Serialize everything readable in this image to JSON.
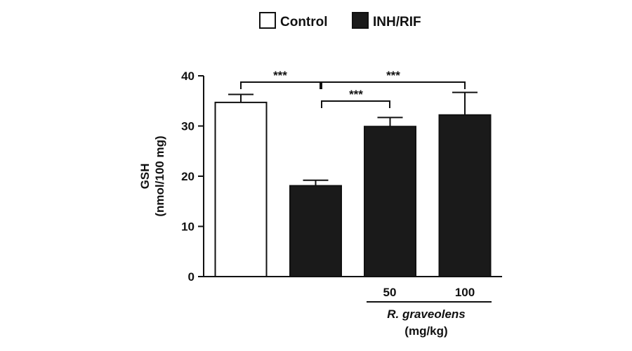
{
  "chart_data": {
    "type": "bar",
    "categories": [
      "Control",
      "INH/RIF",
      "R. graveolens 50",
      "R. graveolens 100"
    ],
    "values": [
      34.7,
      18.1,
      29.9,
      32.2
    ],
    "errors": [
      1.6,
      1.1,
      1.8,
      4.5
    ],
    "series": [
      {
        "name": "Control",
        "color": "#ffffff"
      },
      {
        "name": "INH/RIF",
        "color": "#1a1a1a"
      }
    ],
    "bar_series": [
      "Control",
      "INH/RIF",
      "INH/RIF",
      "INH/RIF"
    ],
    "ylabel_line1": "GSH",
    "ylabel_line2": "(nmol/100 mg)",
    "ylim": [
      0,
      40
    ],
    "yticks": [
      0,
      10,
      20,
      30,
      40
    ],
    "dose_labels": [
      "50",
      "100"
    ],
    "group_label": "R. graveolens",
    "group_unit": "(mg/kg)",
    "legend_position": "top-center",
    "grid": false,
    "significance": [
      {
        "from": 0,
        "to": 1,
        "label": "***"
      },
      {
        "from": 1,
        "to": 2,
        "label": "***"
      },
      {
        "from": 1,
        "to": 3,
        "label": "***"
      }
    ]
  }
}
